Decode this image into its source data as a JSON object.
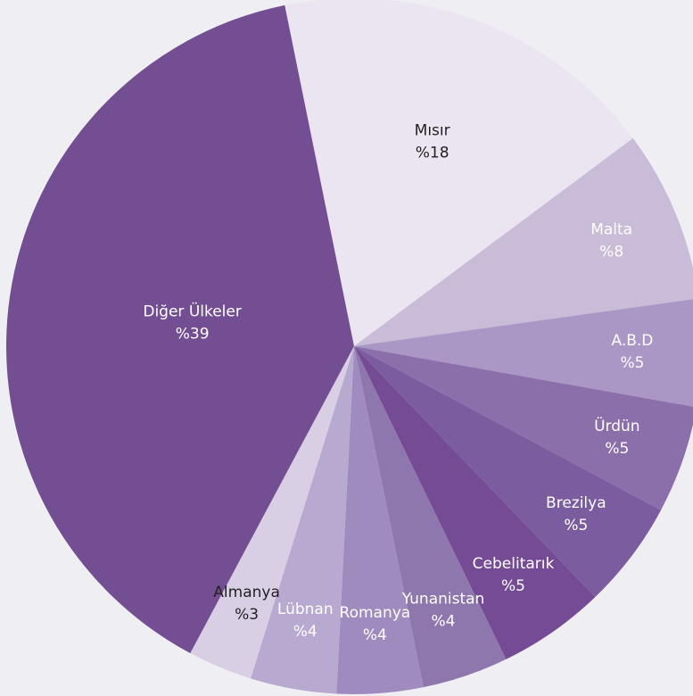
{
  "chart_data": {
    "type": "pie",
    "categories": [
      "Mısır",
      "Malta",
      "A.B.D",
      "Ürdün",
      "Brezilya",
      "Cebelitarık",
      "Yunanistan",
      "Romanya",
      "Lübnan",
      "Almanya",
      "Diğer Ülkeler"
    ],
    "values": [
      18,
      8,
      5,
      5,
      5,
      5,
      4,
      4,
      4,
      3,
      39
    ],
    "value_labels": [
      "%18",
      "%8",
      "%5",
      "%5",
      "%5",
      "%5",
      "%4",
      "%4",
      "%4",
      "%3",
      "%39"
    ],
    "colors": [
      "#ebe5f1",
      "#c9bcd9",
      "#aa97c5",
      "#8b6fab",
      "#7b5c9e",
      "#744b94",
      "#8e77ad",
      "#a08bbf",
      "#b8a9d0",
      "#d8cfe5",
      "#744e93"
    ]
  }
}
